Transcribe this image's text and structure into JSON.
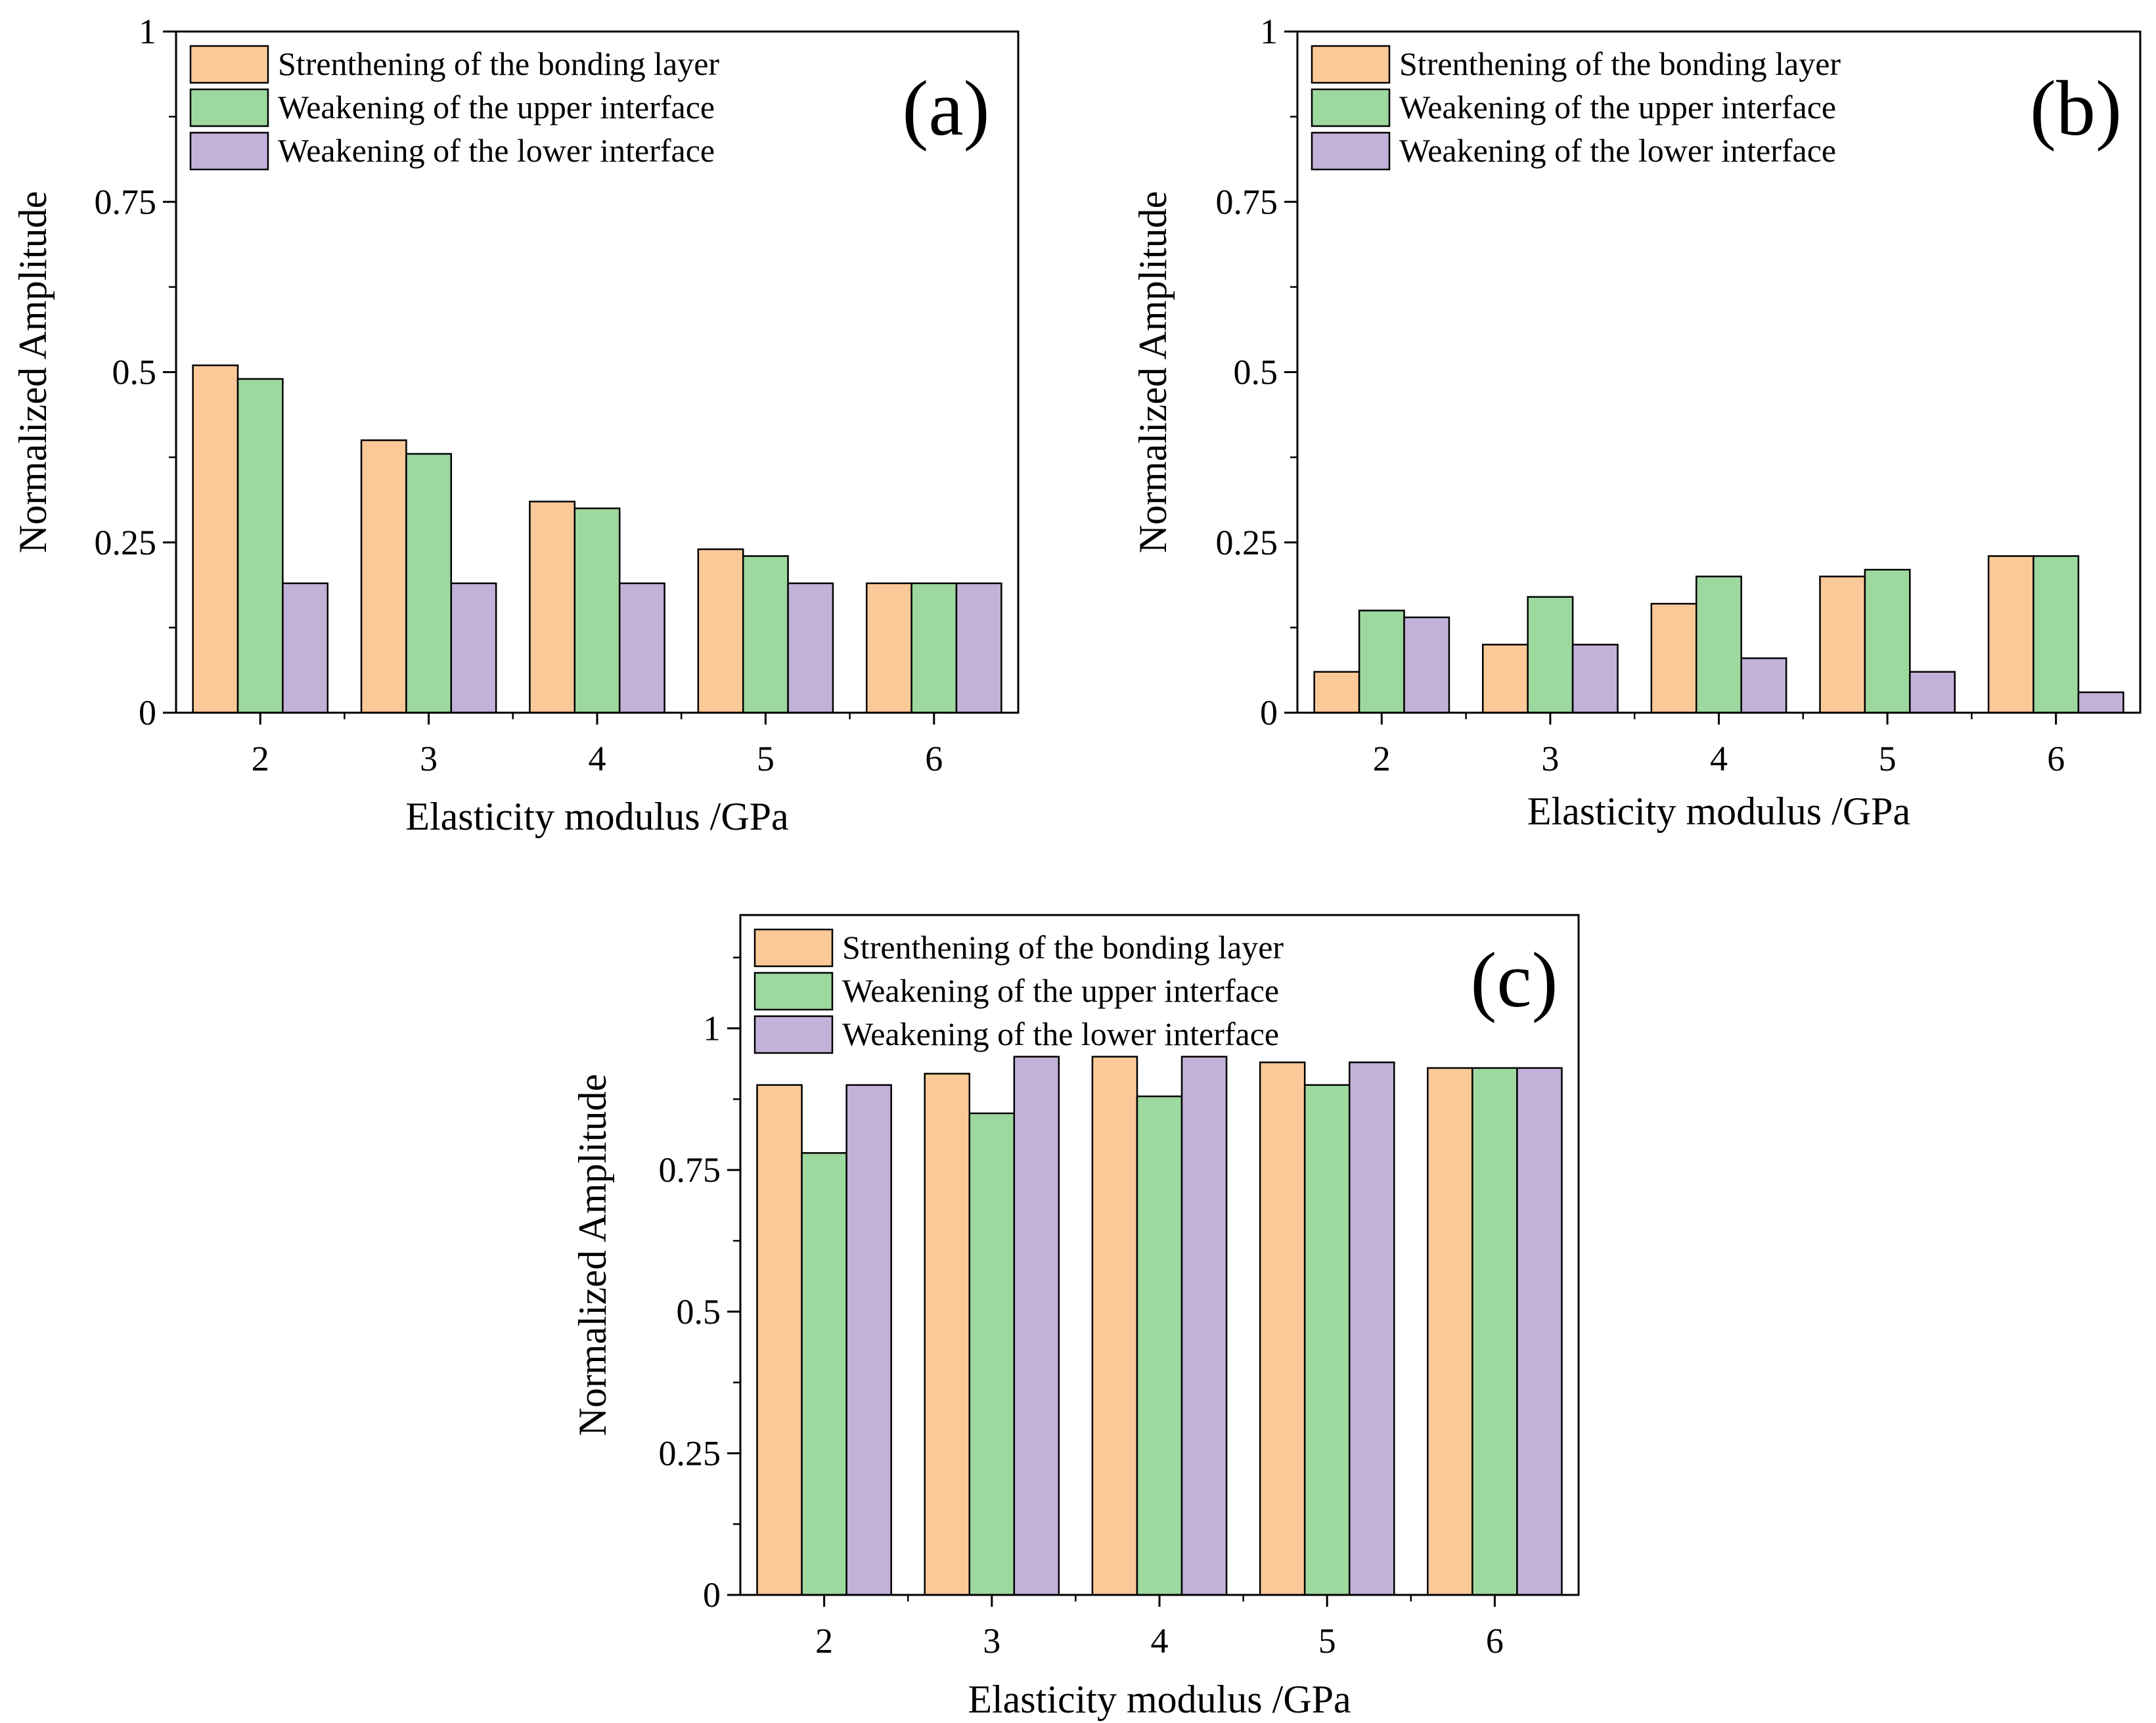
{
  "colors": {
    "s0": "#FBC898",
    "s1": "#9DD89F",
    "s2": "#C2B1D8",
    "frame": "#000000"
  },
  "chart_data": [
    {
      "type": "bar",
      "panel": "(a)",
      "categories": [
        "2",
        "3",
        "4",
        "5",
        "6"
      ],
      "series": [
        {
          "name": "Strenthening of the bonding layer",
          "values": [
            0.51,
            0.4,
            0.31,
            0.24,
            0.19
          ]
        },
        {
          "name": "Weakening of the upper interface",
          "values": [
            0.49,
            0.38,
            0.3,
            0.23,
            0.19
          ]
        },
        {
          "name": "Weakening of the lower interface",
          "values": [
            0.19,
            0.19,
            0.19,
            0.19,
            0.19
          ]
        }
      ],
      "xlabel": "Elasticity modulus /GPa",
      "ylabel": "Normalized Amplitude",
      "ylim": [
        0,
        1
      ],
      "yticks": [
        0,
        0.25,
        0.5,
        0.75,
        1
      ],
      "ytick_labels": [
        "0",
        "0.25",
        "0.5",
        "0.75",
        "1"
      ],
      "legend_position": "top-left"
    },
    {
      "type": "bar",
      "panel": "(b)",
      "categories": [
        "2",
        "3",
        "4",
        "5",
        "6"
      ],
      "series": [
        {
          "name": "Strenthening of the bonding layer",
          "values": [
            0.06,
            0.1,
            0.16,
            0.2,
            0.23
          ]
        },
        {
          "name": "Weakening of the upper interface",
          "values": [
            0.15,
            0.17,
            0.2,
            0.21,
            0.23
          ]
        },
        {
          "name": "Weakening of the lower interface",
          "values": [
            0.14,
            0.1,
            0.08,
            0.06,
            0.03
          ]
        }
      ],
      "xlabel": "Elasticity modulus /GPa",
      "ylabel": "Normalized Amplitude",
      "ylim": [
        0,
        1
      ],
      "yticks": [
        0,
        0.25,
        0.5,
        0.75,
        1
      ],
      "ytick_labels": [
        "0",
        "0.25",
        "0.5",
        "0.75",
        "1"
      ],
      "legend_position": "top-left"
    },
    {
      "type": "bar",
      "panel": "(c)",
      "categories": [
        "2",
        "3",
        "4",
        "5",
        "6"
      ],
      "series": [
        {
          "name": "Strenthening of the bonding layer",
          "values": [
            0.9,
            0.92,
            0.95,
            0.94,
            0.93
          ]
        },
        {
          "name": "Weakening of the upper interface",
          "values": [
            0.78,
            0.85,
            0.88,
            0.9,
            0.93
          ]
        },
        {
          "name": "Weakening of the lower interface",
          "values": [
            0.9,
            0.95,
            0.95,
            0.94,
            0.93
          ]
        }
      ],
      "xlabel": "Elasticity modulus /GPa",
      "ylabel": "Normalized Amplitude",
      "ylim": [
        0,
        1.2
      ],
      "yticks": [
        0,
        0.25,
        0.5,
        0.75,
        1
      ],
      "ytick_labels": [
        "0",
        "0.25",
        "0.5",
        "0.75",
        "1"
      ],
      "legend_position": "top-left"
    }
  ]
}
